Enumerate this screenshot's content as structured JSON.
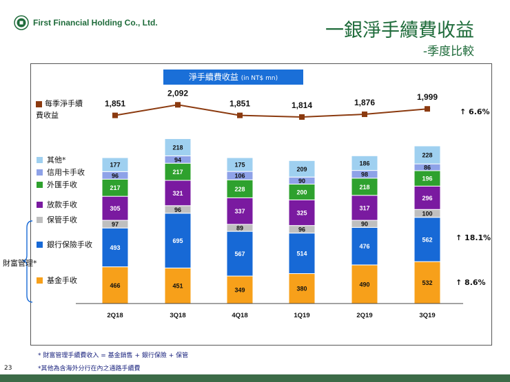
{
  "header": {
    "company": "First Financial Holding Co., Ltd.",
    "title": "一銀淨手續費收益",
    "subtitle": "-季度比較"
  },
  "chart_header": {
    "label": "淨手續費收益",
    "unit": "(in NT$ mn)"
  },
  "colors": {
    "其他": "#9fd0f0",
    "信用卡手收": "#8ea2e8",
    "外匯手收": "#2ea12e",
    "放款手收": "#7a1aa0",
    "保管手收": "#bfbfbf",
    "銀行保險手收": "#1769d6",
    "基金手收": "#f7a01a",
    "line": "#8b3a0f"
  },
  "chart_data": {
    "type": "bar",
    "stacked": true,
    "categories": [
      "2Q18",
      "3Q18",
      "4Q18",
      "1Q19",
      "2Q19",
      "3Q19"
    ],
    "series": [
      {
        "name": "基金手收",
        "values": [
          466,
          451,
          349,
          380,
          490,
          532
        ]
      },
      {
        "name": "銀行保險手收",
        "values": [
          493,
          695,
          567,
          514,
          476,
          562
        ]
      },
      {
        "name": "保管手收",
        "values": [
          97,
          96,
          89,
          96,
          90,
          100
        ]
      },
      {
        "name": "放款手收",
        "values": [
          305,
          321,
          337,
          325,
          317,
          296
        ]
      },
      {
        "name": "外匯手收",
        "values": [
          217,
          217,
          228,
          200,
          218,
          196
        ]
      },
      {
        "name": "信用卡手收",
        "values": [
          96,
          94,
          106,
          90,
          98,
          86
        ]
      },
      {
        "name": "其他",
        "values": [
          177,
          218,
          175,
          209,
          186,
          228
        ]
      }
    ],
    "line": {
      "name": "每季淨手續費收益",
      "values": [
        1851,
        2092,
        1851,
        1814,
        1876,
        1999
      ]
    }
  },
  "legend": {
    "line_label": "每季淨手續費收益",
    "items": [
      "其他",
      "信用卡手收",
      "外匯手收",
      "放款手收",
      "保管手收",
      "銀行保險手收",
      "基金手收"
    ],
    "other_mark": "*"
  },
  "growth": {
    "total": "6.6%",
    "bancassurance": "18.1%",
    "fund": "8.6%"
  },
  "wealth_label": "財富管理*",
  "footnotes": {
    "note1": "* 財富管理手續費收入 = 基金銷售 + 銀行保險 + 保管",
    "note2": "*其他為含海外分行在內之通路手續費"
  },
  "page_number": "23"
}
